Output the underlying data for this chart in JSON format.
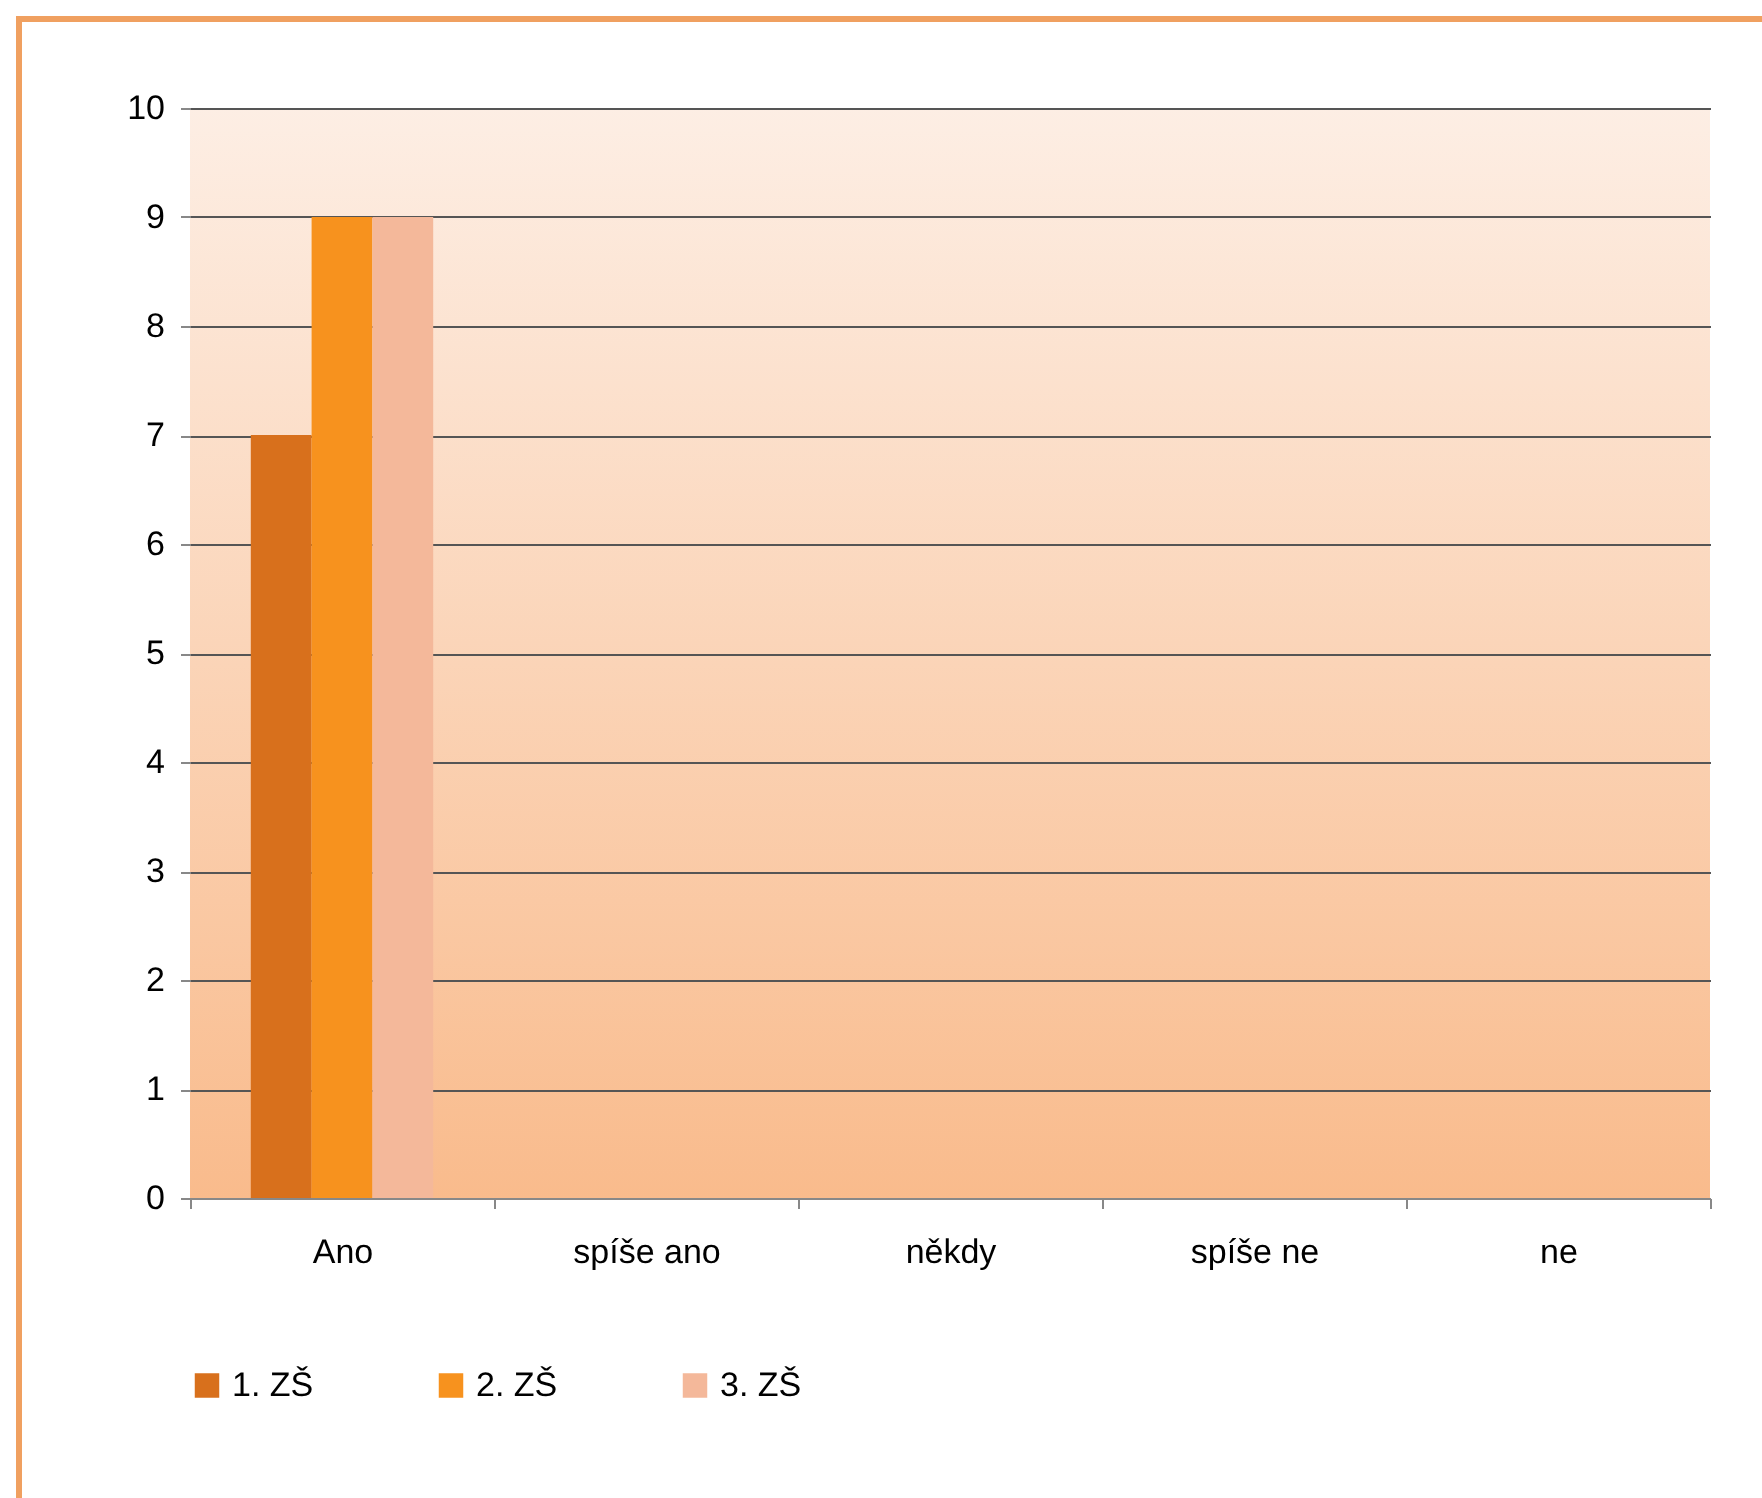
{
  "chart_data": {
    "type": "bar",
    "categories": [
      "Ano",
      "spíše ano",
      "někdy",
      "spíše ne",
      "ne"
    ],
    "series": [
      {
        "name": "1. ZŠ",
        "color": "#d8701c",
        "values": [
          7,
          0,
          0,
          0,
          0
        ]
      },
      {
        "name": "2. ZŠ",
        "color": "#f7921e",
        "values": [
          9,
          0,
          0,
          0,
          0
        ]
      },
      {
        "name": "3. ZŠ",
        "color": "#f4b89a",
        "values": [
          9,
          0,
          0,
          0,
          0
        ]
      }
    ],
    "ylim": [
      0,
      10
    ],
    "yticks": [
      0,
      1,
      2,
      3,
      4,
      5,
      6,
      7,
      8,
      9,
      10
    ],
    "grid": "y",
    "legend": "bottom"
  }
}
